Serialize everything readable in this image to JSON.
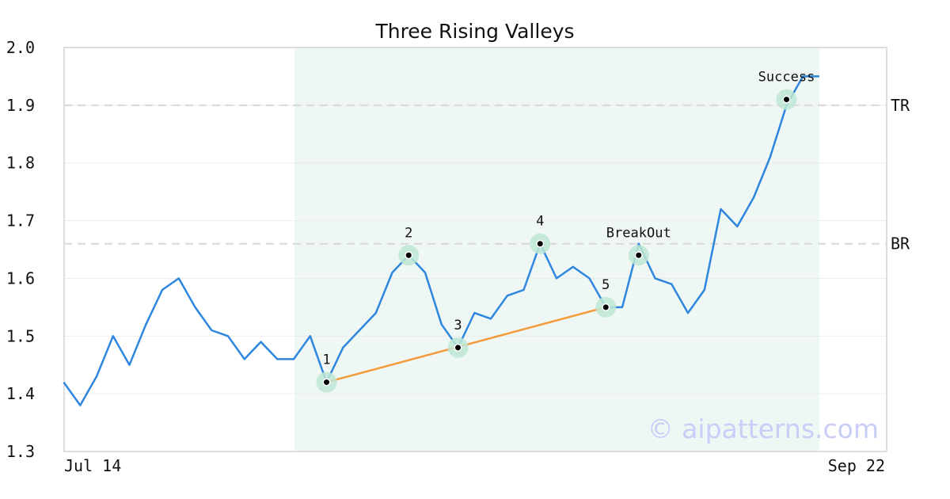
{
  "chart_data": {
    "type": "line",
    "title": "Three Rising Valleys",
    "xlabel": "",
    "ylabel": "",
    "ylim": [
      1.3,
      2.0
    ],
    "y_ticks": [
      "1.3",
      "1.4",
      "1.5",
      "1.6",
      "1.7",
      "1.8",
      "1.9",
      "2.0"
    ],
    "x_tick_labels": [
      "Jul 14",
      "Sep 22"
    ],
    "grid": true,
    "series": [
      {
        "values": [
          1.42,
          1.38,
          1.43,
          1.5,
          1.45,
          1.52,
          1.58,
          1.6,
          1.55,
          1.51,
          1.5,
          1.46,
          1.49,
          1.46,
          1.46,
          1.5,
          1.42,
          1.48,
          1.51,
          1.54,
          1.61,
          1.64,
          1.61,
          1.52,
          1.48,
          1.54,
          1.53,
          1.57,
          1.58,
          1.66,
          1.6,
          1.62,
          1.6,
          1.55,
          1.55,
          1.66,
          1.6,
          1.59,
          1.54,
          1.58,
          1.72,
          1.69,
          1.74,
          1.81,
          1.9,
          1.95,
          1.95
        ],
        "color": "#2e86de"
      }
    ],
    "pattern_window": {
      "start_index": 14,
      "end_index": 46,
      "color": "#eef7f3"
    },
    "levels": [
      {
        "label": "TR",
        "value": 1.9
      },
      {
        "label": "BR",
        "value": 1.66
      }
    ],
    "annotations": [
      {
        "label": "1",
        "index": 16,
        "value": 1.42
      },
      {
        "label": "2",
        "index": 21,
        "value": 1.64
      },
      {
        "label": "3",
        "index": 24,
        "value": 1.48
      },
      {
        "label": "4",
        "index": 29,
        "value": 1.66
      },
      {
        "label": "5",
        "index": 33,
        "value": 1.55
      },
      {
        "label": "BreakOut",
        "index": 35,
        "value": 1.64
      },
      {
        "label": "Success",
        "index": 44,
        "value": 1.91
      }
    ],
    "trendline": {
      "from_label": "1",
      "to_label": "5",
      "color": "#f39c3d"
    },
    "watermark": "© aipatterns.com",
    "colors": {
      "line": "#2e86de",
      "marker_halo": "#bde8d3",
      "trend": "#f39c3d",
      "watermark": "#c9cdf7",
      "level": "#d8d8d8",
      "frame": "#dddddd"
    }
  }
}
